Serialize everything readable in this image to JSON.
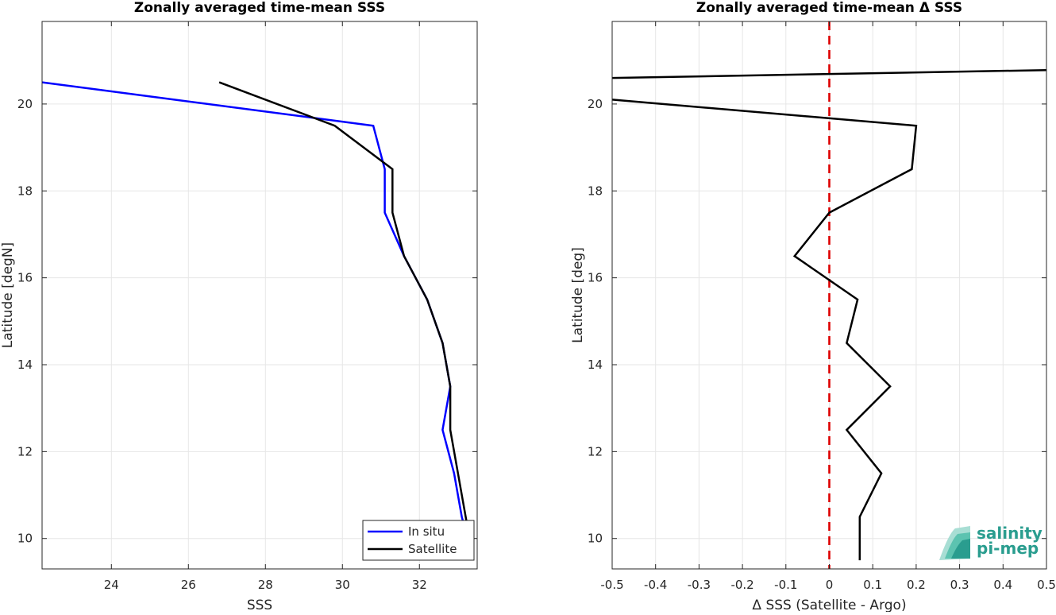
{
  "chart_data": [
    {
      "type": "line",
      "title": "Zonally averaged time-mean SSS",
      "xlabel": "SSS",
      "ylabel": "Latitude [degN]",
      "xlim": [
        22.2,
        33.5
      ],
      "ylim": [
        9.3,
        21.9
      ],
      "xticks": [
        24,
        26,
        28,
        30,
        32
      ],
      "yticks": [
        10,
        12,
        14,
        16,
        18,
        20
      ],
      "grid": true,
      "legend": "bottom-right",
      "series": [
        {
          "name": "In situ",
          "color": "#0000ff",
          "x": [
            33.4,
            33.1,
            32.9,
            32.6,
            32.8,
            32.6,
            32.2,
            31.6,
            31.1,
            31.1,
            30.8,
            22.2
          ],
          "y": [
            9.5,
            10.5,
            11.5,
            12.5,
            13.5,
            14.5,
            15.5,
            16.5,
            17.5,
            18.5,
            19.5,
            20.5
          ]
        },
        {
          "name": "Satellite",
          "color": "#000000",
          "x": [
            33.4,
            33.2,
            33.0,
            32.8,
            32.8,
            32.6,
            32.2,
            31.6,
            31.3,
            31.3,
            29.8,
            26.8
          ],
          "y": [
            9.5,
            10.5,
            11.5,
            12.5,
            13.5,
            14.5,
            15.5,
            16.5,
            17.5,
            18.5,
            19.5,
            20.5
          ]
        }
      ]
    },
    {
      "type": "line",
      "title": "Zonally averaged time-mean Δ SSS",
      "xlabel": "Δ SSS (Satellite - Argo)",
      "ylabel": "Latitude [deg]",
      "xlim": [
        -0.5,
        0.5
      ],
      "ylim": [
        9.3,
        21.9
      ],
      "xticks": [
        -0.5,
        -0.4,
        -0.3,
        -0.2,
        -0.1,
        0,
        0.1,
        0.2,
        0.3,
        0.4,
        0.5
      ],
      "xticklabels": [
        "-0.5",
        "-0.4",
        "-0.3",
        "-0.2",
        "-0.1",
        "0",
        "0.1",
        "0.2",
        "0.3",
        "0.4",
        "0.5"
      ],
      "yticks": [
        10,
        12,
        14,
        16,
        18,
        20
      ],
      "grid": true,
      "series": [
        {
          "color": "#000000",
          "x": [
            0.07,
            0.07,
            0.12,
            0.04,
            0.14,
            0.04,
            0.065,
            -0.08,
            0.0,
            0.19,
            0.2,
            -0.5
          ],
          "y": [
            9.5,
            10.5,
            11.5,
            12.5,
            13.5,
            14.5,
            15.5,
            16.5,
            17.5,
            18.5,
            19.5,
            20.1
          ]
        },
        {
          "color": "#000000",
          "x": [
            -0.5,
            0.5
          ],
          "y": [
            20.6,
            20.78
          ]
        }
      ],
      "reference_line": {
        "x": 0,
        "color": "#dd0000",
        "style": "dashed"
      }
    }
  ],
  "logo": {
    "line1": "salinity",
    "line2": "pi-mep"
  }
}
